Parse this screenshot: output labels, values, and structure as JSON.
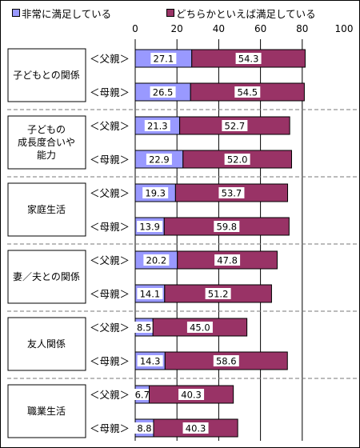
{
  "chart_data": {
    "type": "bar",
    "orientation": "horizontal",
    "stacked": true,
    "legend": {
      "placement": "top"
    },
    "grid": true,
    "xlim": [
      0,
      100
    ],
    "xticks": [
      "0",
      "20",
      "40",
      "60",
      "80",
      "100"
    ],
    "groups": [
      {
        "label_lines": [
          "子どもとの関係"
        ]
      },
      {
        "label_lines": [
          "子どもの",
          "成長度合いや",
          "能力"
        ]
      },
      {
        "label_lines": [
          "家庭生活"
        ]
      },
      {
        "label_lines": [
          "妻／夫との関係"
        ]
      },
      {
        "label_lines": [
          "友人関係"
        ]
      },
      {
        "label_lines": [
          "職業生活"
        ]
      }
    ],
    "bar_labels": [
      "＜父親＞",
      "＜母親＞"
    ],
    "series": [
      {
        "name": "非常に満足している",
        "color": "#9999ff",
        "values": [
          [
            27.1,
            26.5
          ],
          [
            21.3,
            22.9
          ],
          [
            19.3,
            13.9
          ],
          [
            20.2,
            14.1
          ],
          [
            8.5,
            14.3
          ],
          [
            6.7,
            8.8
          ]
        ]
      },
      {
        "name": "どちらかといえば満足している",
        "color": "#993366",
        "values": [
          [
            54.3,
            54.5
          ],
          [
            52.7,
            52.0
          ],
          [
            53.7,
            59.8
          ],
          [
            47.8,
            51.2
          ],
          [
            45.0,
            58.6
          ],
          [
            40.3,
            40.3
          ]
        ]
      }
    ]
  }
}
